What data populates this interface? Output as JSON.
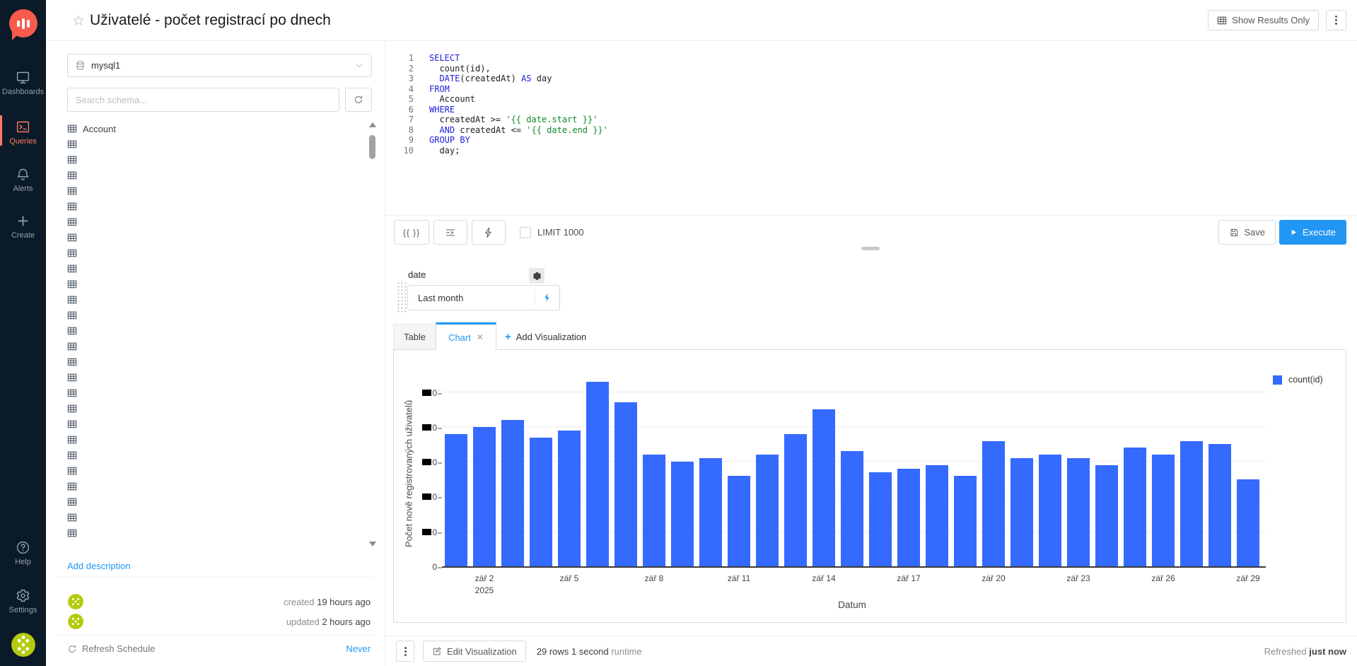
{
  "nav": {
    "items": [
      {
        "id": "dashboards",
        "label": "Dashboards",
        "active": false
      },
      {
        "id": "queries",
        "label": "Queries",
        "active": true
      },
      {
        "id": "alerts",
        "label": "Alerts",
        "active": false
      },
      {
        "id": "create",
        "label": "Create",
        "active": false
      }
    ],
    "bottom_items": [
      {
        "id": "help",
        "label": "Help",
        "active": false
      },
      {
        "id": "settings",
        "label": "Settings",
        "active": false
      }
    ]
  },
  "header": {
    "title": "Uživatelé - počet registrací po dnech",
    "show_results_only": "Show Results Only"
  },
  "schema": {
    "datasource": "mysql1",
    "search_placeholder": "Search schema...",
    "tables": [
      "Account"
    ],
    "unnamed_rows": 26,
    "add_description": "Add description",
    "created_label": "created",
    "created_value": "19 hours ago",
    "updated_label": "updated",
    "updated_value": "2 hours ago",
    "refresh_schedule": "Refresh Schedule",
    "refresh_value": "Never"
  },
  "editor": {
    "lines": [
      [
        {
          "t": "SELECT",
          "y": "kw"
        }
      ],
      [
        {
          "t": "  count(id),",
          "y": "p"
        }
      ],
      [
        {
          "t": "  ",
          "y": "p"
        },
        {
          "t": "DATE",
          "y": "kw"
        },
        {
          "t": "(createdAt) ",
          "y": "p"
        },
        {
          "t": "AS",
          "y": "kw"
        },
        {
          "t": " day",
          "y": "p"
        }
      ],
      [
        {
          "t": "FROM",
          "y": "kw"
        }
      ],
      [
        {
          "t": "  Account",
          "y": "p"
        }
      ],
      [
        {
          "t": "WHERE",
          "y": "kw"
        }
      ],
      [
        {
          "t": "  createdAt >= ",
          "y": "p"
        },
        {
          "t": "'{{ date.start }}'",
          "y": "str"
        }
      ],
      [
        {
          "t": "  ",
          "y": "p"
        },
        {
          "t": "AND",
          "y": "kw"
        },
        {
          "t": " createdAt <= ",
          "y": "p"
        },
        {
          "t": "'{{ date.end }}'",
          "y": "str"
        }
      ],
      [
        {
          "t": "GROUP BY",
          "y": "kw"
        }
      ],
      [
        {
          "t": "  day;",
          "y": "p"
        }
      ]
    ]
  },
  "toolbar": {
    "mustache": "{{ }}",
    "limit_label": "LIMIT 1000",
    "limit_checked": false,
    "save": "Save",
    "execute": "Execute"
  },
  "parameter": {
    "name": "date",
    "value": "Last month"
  },
  "tabs": {
    "table": "Table",
    "chart": "Chart",
    "add": "Add Visualization"
  },
  "chart_data": {
    "type": "bar",
    "title": "",
    "xlabel": "Datum",
    "ylabel": "Počet nově registrovaných uživatelů",
    "grid": true,
    "ylim": [
      0,
      55
    ],
    "y_ticks": [
      0,
      10,
      20,
      30,
      40,
      50
    ],
    "y_tick_labels_visible": [
      "0",
      "■0",
      "■0",
      "■0",
      "■0",
      "■0"
    ],
    "legend": {
      "position": "top-right"
    },
    "x": [
      "2025-09-01",
      "2025-09-02",
      "2025-09-03",
      "2025-09-04",
      "2025-09-05",
      "2025-09-06",
      "2025-09-07",
      "2025-09-08",
      "2025-09-09",
      "2025-09-10",
      "2025-09-11",
      "2025-09-12",
      "2025-09-13",
      "2025-09-14",
      "2025-09-15",
      "2025-09-16",
      "2025-09-17",
      "2025-09-18",
      "2025-09-19",
      "2025-09-20",
      "2025-09-21",
      "2025-09-22",
      "2025-09-23",
      "2025-09-24",
      "2025-09-25",
      "2025-09-26",
      "2025-09-27",
      "2025-09-28",
      "2025-09-29"
    ],
    "series": [
      {
        "name": "count(id)",
        "color": "#356aff",
        "values": [
          38,
          40,
          42,
          37,
          39,
          53,
          47,
          32,
          30,
          31,
          26,
          32,
          38,
          45,
          33,
          27,
          28,
          29,
          26,
          36,
          31,
          32,
          31,
          29,
          34,
          32,
          36,
          35,
          25
        ]
      }
    ],
    "x_tick_labels": [
      {
        "index": 1,
        "label": "zář 2",
        "sub": "2025"
      },
      {
        "index": 4,
        "label": "zář 5"
      },
      {
        "index": 7,
        "label": "zář 8"
      },
      {
        "index": 10,
        "label": "zář 11"
      },
      {
        "index": 13,
        "label": "zář 14"
      },
      {
        "index": 16,
        "label": "zář 17"
      },
      {
        "index": 19,
        "label": "zář 20"
      },
      {
        "index": 22,
        "label": "zář 23"
      },
      {
        "index": 25,
        "label": "zář 26"
      },
      {
        "index": 28,
        "label": "zář 29"
      }
    ]
  },
  "result_footer": {
    "edit_visualization": "Edit Visualization",
    "rows": "29 rows",
    "runtime": "1 second",
    "runtime_suffix": "runtime",
    "refreshed_label": "Refreshed",
    "refreshed_value": "just now"
  },
  "colors": {
    "accent": "#ff7964",
    "primary": "#2196f3",
    "bar": "#356aff",
    "nav_bg": "#0b1a28",
    "keyword": "#2020dd",
    "string": "#108a2a"
  }
}
